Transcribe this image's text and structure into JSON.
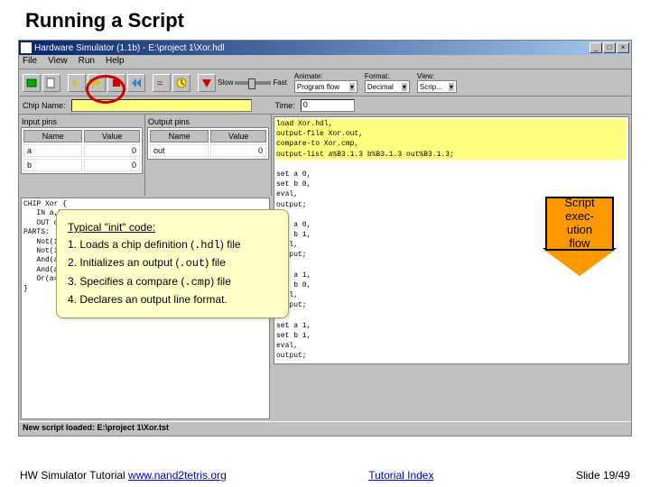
{
  "slide": {
    "title": "Running a Script",
    "counter": "Slide 19/49"
  },
  "footer": {
    "left_text": "HW Simulator Tutorial ",
    "left_link": "www.nand2tetris.org",
    "center_link": "Tutorial Index"
  },
  "window": {
    "title": "Hardware Simulator (1.1b) - E:\\project 1\\Xor.hdl",
    "menu": [
      "File",
      "View",
      "Run",
      "Help"
    ],
    "combos": {
      "animate_label": "Animate:",
      "animate_value": "Program flow",
      "format_label": "Format:",
      "format_value": "Decimal",
      "view_label": "View:",
      "view_value": "Scrip..."
    },
    "info": {
      "chip_label": "Chip Name:",
      "time_label": "Time:",
      "time_value": "0"
    },
    "pins": {
      "input_label": "Input pins",
      "output_label": "Output pins",
      "cols": [
        "Name",
        "Value"
      ],
      "inputs": [
        [
          "a",
          "0"
        ],
        [
          "b",
          "0"
        ]
      ],
      "outputs": [
        [
          "out",
          "0"
        ]
      ]
    },
    "script_lines": [
      "load Xor.hdl,",
      "output-file Xor.out,",
      "compare-to Xor.cmp,",
      "output-list a%B3.1.3 b%B3.1.3 out%B3.1.3;",
      "",
      "set a 0,",
      "set b 0,",
      "eval,",
      "output;",
      "",
      "set a 0,",
      "set b 1,",
      "eval,",
      "output;",
      "",
      "set a 1,",
      "set b 0,",
      "eval,",
      "output;",
      "",
      "set a 1,",
      "set b 1,",
      "eval,",
      "output;"
    ],
    "hdl_lines": [
      "CHIP Xor {",
      "   IN a,b;",
      "   OUT out;",
      "PARTS:",
      "   Not(in=a,out=nota);",
      "   Not(in=b,out=notb);",
      "   And(a=a,b=notb,out=w1);",
      "   And(a=nota,b=b,out=w2);",
      "   Or(a=w1,b=w2,out=out);",
      "}"
    ],
    "status": "New script loaded: E:\\project 1\\Xor.tst"
  },
  "callout": {
    "heading": "Typical \"init\" code:",
    "items": [
      {
        "n": "1.",
        "pre": "Loads a chip definition (",
        "code": ".hdl",
        "post": ") file"
      },
      {
        "n": "2.",
        "pre": "Initializes an output (",
        "code": ".out",
        "post": ") file"
      },
      {
        "n": "3.",
        "pre": "Specifies a compare (",
        "code": ".cmp",
        "post": ") file"
      },
      {
        "n": "4.",
        "pre": "Declares an output line format.",
        "code": "",
        "post": ""
      }
    ]
  },
  "arrow": {
    "l1": "Script",
    "l2": "exec-",
    "l3": "ution",
    "l4": "flow"
  },
  "colors": {
    "highlight": "#ffff80",
    "callout_bg": "#ffffcc",
    "arrow_fill": "#ff9900",
    "circle": "#c00000"
  }
}
